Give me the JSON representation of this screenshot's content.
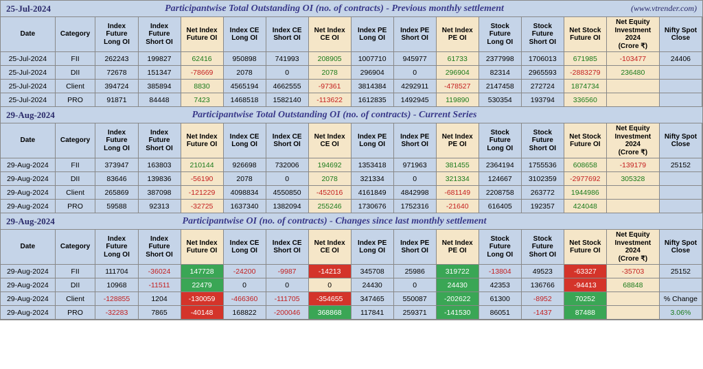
{
  "link": "(www.vtrender.com)",
  "sections": [
    {
      "date": "25-Jul-2024",
      "title": "Participantwise Total Outstanding OI (no. of contracts) - Previous monthly settlement",
      "showLink": true,
      "headers": [
        "Date",
        "Category",
        "Index Future Long OI",
        "Index Future Short OI",
        "Net Index Future OI",
        "Index CE Long OI",
        "Index CE Short OI",
        "Net Index CE OI",
        "Index PE Long OI",
        "Index PE Short OI",
        "Net Index PE OI",
        "Stock Future Long OI",
        "Stock Future Short OI",
        "Net Stock Future OI",
        "Net Equity Investment 2024 (Crore ₹)",
        "Nifty Spot Close"
      ],
      "hlHeaders": [
        4,
        7,
        10,
        13,
        14
      ],
      "rows": [
        [
          "25-Jul-2024",
          "FII",
          "262243",
          "199827",
          {
            "v": "62416",
            "c": "pos"
          },
          "950898",
          "741993",
          {
            "v": "208905",
            "c": "pos"
          },
          "1007710",
          "945977",
          {
            "v": "61733",
            "c": "pos"
          },
          "2377998",
          "1706013",
          {
            "v": "671985",
            "c": "pos"
          },
          {
            "v": "-103477",
            "c": "neg"
          },
          "24406"
        ],
        [
          "25-Jul-2024",
          "DII",
          "72678",
          "151347",
          {
            "v": "-78669",
            "c": "neg"
          },
          "2078",
          "0",
          {
            "v": "2078",
            "c": "pos"
          },
          "296904",
          "0",
          {
            "v": "296904",
            "c": "pos"
          },
          "82314",
          "2965593",
          {
            "v": "-2883279",
            "c": "neg"
          },
          {
            "v": "236480",
            "c": "pos"
          },
          ""
        ],
        [
          "25-Jul-2024",
          "Client",
          "394724",
          "385894",
          {
            "v": "8830",
            "c": "pos"
          },
          "4565194",
          "4662555",
          {
            "v": "-97361",
            "c": "neg"
          },
          "3814384",
          "4292911",
          {
            "v": "-478527",
            "c": "neg"
          },
          "2147458",
          "272724",
          {
            "v": "1874734",
            "c": "pos"
          },
          "",
          ""
        ],
        [
          "25-Jul-2024",
          "PRO",
          "91871",
          "84448",
          {
            "v": "7423",
            "c": "pos"
          },
          "1468518",
          "1582140",
          {
            "v": "-113622",
            "c": "neg"
          },
          "1612835",
          "1492945",
          {
            "v": "119890",
            "c": "pos"
          },
          "530354",
          "193794",
          {
            "v": "336560",
            "c": "pos"
          },
          "",
          ""
        ]
      ],
      "hlCols": [
        4,
        7,
        10,
        13,
        14
      ]
    },
    {
      "date": "29-Aug-2024",
      "title": "Participantwise Total Outstanding OI (no. of contracts) - Current Series",
      "showLink": false,
      "headers": [
        "Date",
        "Category",
        "Index Future Long OI",
        "Index Future Short OI",
        "Net Index Future OI",
        "Index CE Long OI",
        "Index CE Short OI",
        "Net Index CE OI",
        "Index PE Long OI",
        "Index PE Short OI",
        "Net Index PE OI",
        "Stock Future Long OI",
        "Stock Future Short OI",
        "Net Stock Future OI",
        "Net Equity Investment 2024 (Crore ₹)",
        "Nifty Spot Close"
      ],
      "hlHeaders": [
        4,
        7,
        10,
        13,
        14
      ],
      "rows": [
        [
          "29-Aug-2024",
          "FII",
          "373947",
          "163803",
          {
            "v": "210144",
            "c": "pos"
          },
          "926698",
          "732006",
          {
            "v": "194692",
            "c": "pos"
          },
          "1353418",
          "971963",
          {
            "v": "381455",
            "c": "pos"
          },
          "2364194",
          "1755536",
          {
            "v": "608658",
            "c": "pos"
          },
          {
            "v": "-139179",
            "c": "neg"
          },
          "25152"
        ],
        [
          "29-Aug-2024",
          "DII",
          "83646",
          "139836",
          {
            "v": "-56190",
            "c": "neg"
          },
          "2078",
          "0",
          {
            "v": "2078",
            "c": "pos"
          },
          "321334",
          "0",
          {
            "v": "321334",
            "c": "pos"
          },
          "124667",
          "3102359",
          {
            "v": "-2977692",
            "c": "neg"
          },
          {
            "v": "305328",
            "c": "pos"
          },
          ""
        ],
        [
          "29-Aug-2024",
          "Client",
          "265869",
          "387098",
          {
            "v": "-121229",
            "c": "neg"
          },
          "4098834",
          "4550850",
          {
            "v": "-452016",
            "c": "neg"
          },
          "4161849",
          "4842998",
          {
            "v": "-681149",
            "c": "neg"
          },
          "2208758",
          "263772",
          {
            "v": "1944986",
            "c": "pos"
          },
          "",
          ""
        ],
        [
          "29-Aug-2024",
          "PRO",
          "59588",
          "92313",
          {
            "v": "-32725",
            "c": "neg"
          },
          "1637340",
          "1382094",
          {
            "v": "255246",
            "c": "pos"
          },
          "1730676",
          "1752316",
          {
            "v": "-21640",
            "c": "neg"
          },
          "616405",
          "192357",
          {
            "v": "424048",
            "c": "pos"
          },
          "",
          ""
        ]
      ],
      "hlCols": [
        4,
        7,
        10,
        13,
        14
      ]
    },
    {
      "date": "29-Aug-2024",
      "title": "Participantwise OI (no. of contracts) - Changes since last monthly settlement",
      "showLink": false,
      "headers": [
        "Date",
        "Category",
        "Index Future Long OI",
        "Index Future Short OI",
        "Net Index Future OI",
        "Index CE Long OI",
        "Index CE Short OI",
        "Net Index CE OI",
        "Index PE Long OI",
        "Index PE Short OI",
        "Net Index PE OI",
        "Stock Future Long OI",
        "Stock Future Short OI",
        "Net Stock Future OI",
        "Net Equity Investment 2024 (Crore ₹)",
        "Nifty Spot Close"
      ],
      "hlHeaders": [
        4,
        7,
        10,
        13,
        14
      ],
      "rows": [
        [
          "29-Aug-2024",
          "FII",
          "111704",
          {
            "v": "-36024",
            "c": "neg"
          },
          {
            "v": "147728",
            "bg": "green"
          },
          {
            "v": "-24200",
            "c": "neg"
          },
          {
            "v": "-9987",
            "c": "neg"
          },
          {
            "v": "-14213",
            "bg": "red"
          },
          "345708",
          "25986",
          {
            "v": "319722",
            "bg": "green"
          },
          {
            "v": "-13804",
            "c": "neg"
          },
          "49523",
          {
            "v": "-63327",
            "bg": "red"
          },
          {
            "v": "-35703",
            "c": "neg"
          },
          "25152"
        ],
        [
          "29-Aug-2024",
          "DII",
          "10968",
          {
            "v": "-11511",
            "c": "neg"
          },
          {
            "v": "22479",
            "bg": "green"
          },
          "0",
          "0",
          {
            "v": "0",
            "bg": "yellow"
          },
          "24430",
          "0",
          {
            "v": "24430",
            "bg": "green"
          },
          "42353",
          "136766",
          {
            "v": "-94413",
            "bg": "red"
          },
          {
            "v": "68848",
            "c": "pos"
          },
          ""
        ],
        [
          "29-Aug-2024",
          "Client",
          {
            "v": "-128855",
            "c": "neg"
          },
          "1204",
          {
            "v": "-130059",
            "bg": "red"
          },
          {
            "v": "-466360",
            "c": "neg"
          },
          {
            "v": "-111705",
            "c": "neg"
          },
          {
            "v": "-354655",
            "bg": "red"
          },
          "347465",
          "550087",
          {
            "v": "-202622",
            "bg": "green"
          },
          "61300",
          {
            "v": "-8952",
            "c": "neg"
          },
          {
            "v": "70252",
            "bg": "green"
          },
          "",
          "% Change"
        ],
        [
          "29-Aug-2024",
          "PRO",
          {
            "v": "-32283",
            "c": "neg"
          },
          "7865",
          {
            "v": "-40148",
            "bg": "red"
          },
          "168822",
          {
            "v": "-200046",
            "c": "neg"
          },
          {
            "v": "368868",
            "bg": "green"
          },
          "117841",
          "259371",
          {
            "v": "-141530",
            "bg": "green"
          },
          "86051",
          {
            "v": "-1437",
            "c": "neg"
          },
          {
            "v": "87488",
            "bg": "green"
          },
          "",
          {
            "v": "3.06%",
            "c": "pos"
          }
        ]
      ],
      "hlCols": [
        4,
        7,
        10,
        13,
        14
      ]
    }
  ],
  "colClasses": [
    "col-date",
    "col-cat",
    "col-n",
    "col-n",
    "col-net",
    "col-n",
    "col-n",
    "col-net",
    "col-n",
    "col-n",
    "col-net",
    "col-n",
    "col-n",
    "col-net",
    "col-eq",
    "col-nifty"
  ]
}
